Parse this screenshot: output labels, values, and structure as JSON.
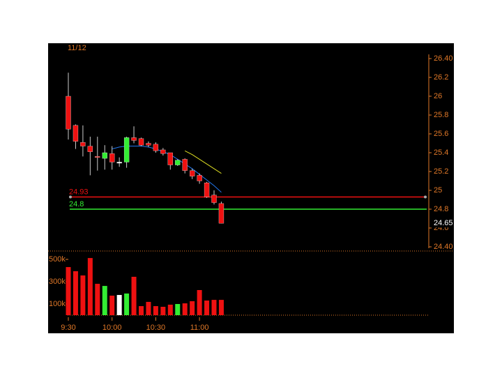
{
  "chart_data": {
    "type": "candlestick",
    "date_label": "11/12",
    "categories": [
      "9:30",
      null,
      null,
      null,
      null,
      null,
      "10:00",
      null,
      null,
      null,
      null,
      null,
      "10:30",
      null,
      null,
      null,
      null,
      null,
      "11:00",
      null,
      null,
      null
    ],
    "open": [
      26.0,
      25.69,
      25.51,
      25.47,
      25.36,
      25.34,
      25.39,
      25.3,
      25.3,
      25.56,
      25.55,
      25.5,
      25.49,
      25.43,
      25.4,
      25.27,
      25.33,
      25.21,
      25.16,
      25.08,
      24.95,
      24.86
    ],
    "high": [
      26.25,
      25.7,
      25.69,
      25.57,
      25.57,
      25.48,
      25.47,
      25.35,
      25.57,
      25.68,
      25.56,
      25.52,
      25.51,
      25.45,
      25.4,
      25.33,
      25.34,
      25.23,
      25.18,
      25.09,
      25.0,
      24.88
    ],
    "low": [
      25.54,
      25.44,
      25.36,
      25.16,
      25.21,
      25.22,
      25.22,
      25.25,
      25.24,
      25.5,
      25.47,
      25.46,
      25.4,
      25.37,
      25.22,
      25.26,
      25.18,
      25.12,
      25.07,
      24.92,
      24.85,
      24.65
    ],
    "close": [
      25.65,
      25.52,
      25.47,
      25.41,
      25.35,
      25.4,
      25.3,
      25.3,
      25.56,
      25.53,
      25.48,
      25.48,
      25.42,
      25.39,
      25.27,
      25.32,
      25.21,
      25.15,
      25.1,
      24.93,
      24.87,
      24.65
    ],
    "up_color": "#33ee33",
    "down_color": "#ee1111",
    "flat_color": "#ffffff",
    "ylim": [
      24.4,
      26.4
    ],
    "yticks": [
      {
        "value": 24.4,
        "label": "24.40"
      },
      24.6,
      24.8,
      25,
      25.2,
      25.4,
      25.6,
      25.8,
      26,
      26.2,
      {
        "value": 26.4,
        "label": "26.40"
      }
    ],
    "overlays": [
      {
        "color": "#2277ee",
        "values": [
          null,
          null,
          null,
          null,
          null,
          null,
          25.44,
          25.46,
          25.47,
          25.47,
          25.47,
          25.46,
          25.44,
          25.41,
          25.38,
          25.33,
          25.28,
          25.23,
          25.17,
          25.11,
          25.05,
          24.98
        ]
      },
      {
        "color": "#dddd22",
        "values": [
          null,
          null,
          null,
          null,
          null,
          null,
          null,
          null,
          null,
          null,
          null,
          null,
          null,
          null,
          null,
          null,
          25.42,
          25.38,
          25.33,
          25.28,
          25.23,
          25.18
        ]
      }
    ],
    "levels": [
      {
        "value": 24.93,
        "color": "#ee1111"
      },
      {
        "value": 24.8,
        "color": "#33ee33"
      }
    ],
    "last_price": 24.65,
    "volume": {
      "values": [
        431000,
        394000,
        356000,
        512000,
        281000,
        262000,
        175000,
        181000,
        194000,
        344000,
        81000,
        119000,
        81000,
        75000,
        94000,
        100000,
        106000,
        125000,
        225000,
        131000,
        137000,
        137000
      ],
      "ylim": [
        0,
        562500
      ],
      "yticks": [
        {
          "value": 100000,
          "label": "100k"
        },
        {
          "value": 300000,
          "label": "300k"
        },
        {
          "value": 500000,
          "label": "500k"
        }
      ]
    }
  }
}
